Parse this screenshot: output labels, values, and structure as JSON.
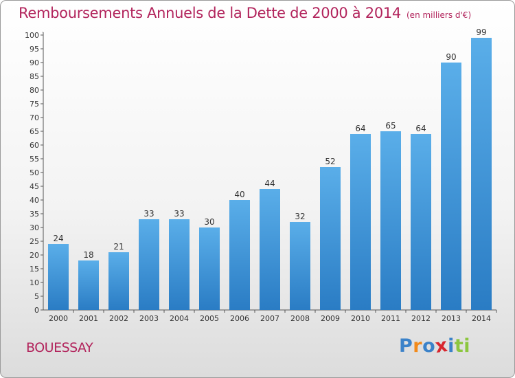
{
  "chart_data": {
    "type": "bar",
    "title": "Remboursements Annuels de la Dette de 2000 à 2014",
    "unit": "(en milliers d'€)",
    "categories": [
      "2000",
      "2001",
      "2002",
      "2003",
      "2004",
      "2005",
      "2006",
      "2007",
      "2008",
      "2009",
      "2010",
      "2011",
      "2012",
      "2013",
      "2014"
    ],
    "values": [
      24,
      18,
      21,
      33,
      33,
      30,
      40,
      44,
      32,
      52,
      64,
      65,
      64,
      90,
      99
    ],
    "ylim": [
      0,
      100
    ],
    "ytick_step": 5,
    "grid": false,
    "bar_color_light": "#5aaee9",
    "bar_color_dark": "#2a7cc4"
  },
  "footer": {
    "commune": "BOUESSAY",
    "brand_letters": [
      "P",
      "r",
      "o",
      "x",
      "i",
      "t",
      "i"
    ],
    "brand_colors": [
      "#3b82c9",
      "#f28a1b",
      "#3b82c9",
      "#d8262e",
      "#3b82c9",
      "#8cc63f",
      "#8cc63f"
    ]
  }
}
